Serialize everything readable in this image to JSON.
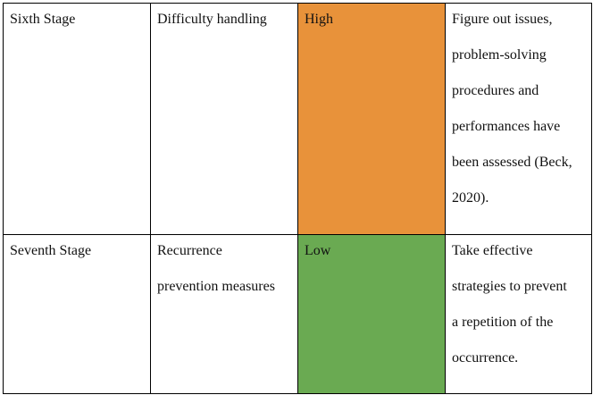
{
  "table": {
    "rows": [
      [
        [
          "Sixth Stage"
        ],
        [
          "Difficulty handling"
        ],
        [
          "High"
        ],
        [
          "Figure out issues,",
          "problem-solving",
          "procedures and",
          "performances have",
          "been assessed (Beck,",
          "2020)."
        ]
      ],
      [
        [
          "Seventh Stage"
        ],
        [
          "Recurrence",
          "prevention measures"
        ],
        [
          "Low"
        ],
        [
          "Take effective",
          "strategies to prevent",
          "a repetition of the",
          "occurrence."
        ]
      ]
    ]
  }
}
